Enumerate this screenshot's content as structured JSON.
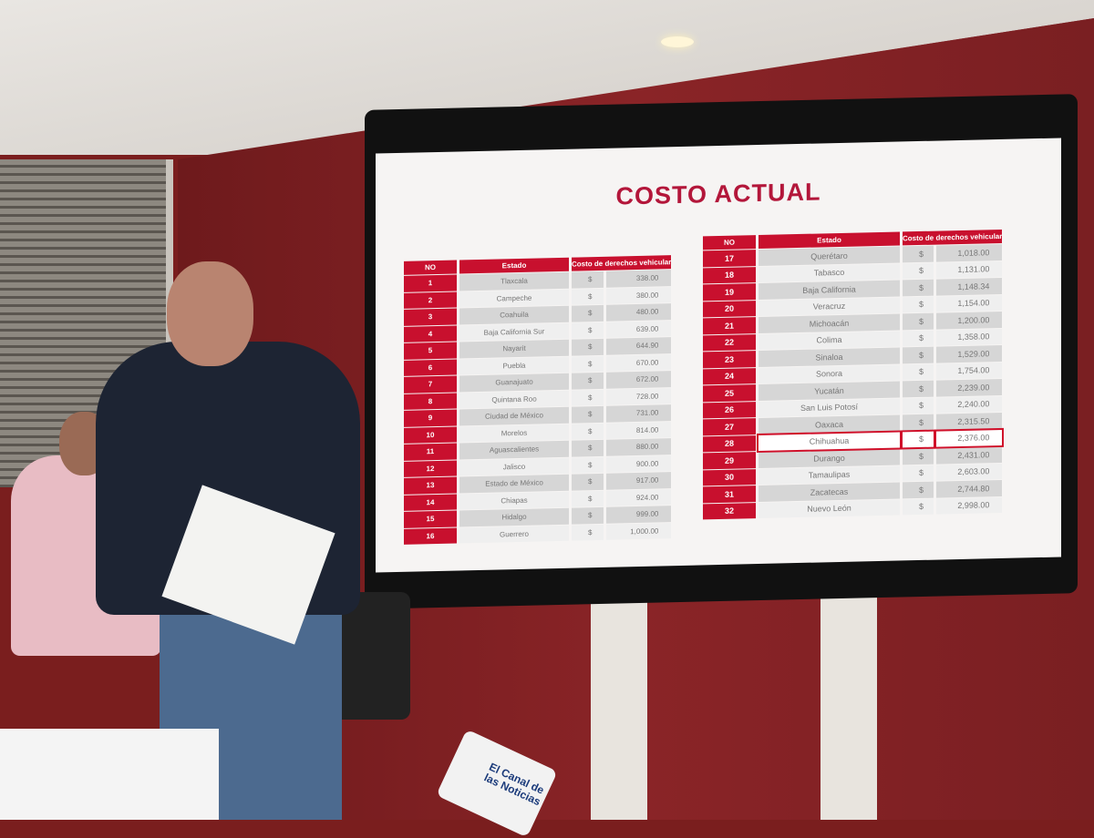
{
  "slide": {
    "title": "COSTO ACTUAL",
    "headers": [
      "NO",
      "Estado",
      "Costo de derechos vehicular"
    ],
    "currency": "$",
    "highlight_color": "#c8102e",
    "left_rows": [
      [
        "1",
        "Tlaxcala",
        "338.00"
      ],
      [
        "2",
        "Campeche",
        "380.00"
      ],
      [
        "3",
        "Coahuila",
        "480.00"
      ],
      [
        "4",
        "Baja California Sur",
        "639.00"
      ],
      [
        "5",
        "Nayarit",
        "644.90"
      ],
      [
        "6",
        "Puebla",
        "670.00"
      ],
      [
        "7",
        "Guanajuato",
        "672.00"
      ],
      [
        "8",
        "Quintana Roo",
        "728.00"
      ],
      [
        "9",
        "Ciudad de México",
        "731.00"
      ],
      [
        "10",
        "Morelos",
        "814.00"
      ],
      [
        "11",
        "Aguascalientes",
        "880.00"
      ],
      [
        "12",
        "Jalisco",
        "900.00"
      ],
      [
        "13",
        "Estado de México",
        "917.00"
      ],
      [
        "14",
        "Chiapas",
        "924.00"
      ],
      [
        "15",
        "Hidalgo",
        "999.00"
      ],
      [
        "16",
        "Guerrero",
        "1,000.00"
      ]
    ],
    "right_rows": [
      [
        "17",
        "Querétaro",
        "1,018.00"
      ],
      [
        "18",
        "Tabasco",
        "1,131.00"
      ],
      [
        "19",
        "Baja California",
        "1,148.34"
      ],
      [
        "20",
        "Veracruz",
        "1,154.00"
      ],
      [
        "21",
        "Michoacán",
        "1,200.00"
      ],
      [
        "22",
        "Colima",
        "1,358.00"
      ],
      [
        "23",
        "Sinaloa",
        "1,529.00"
      ],
      [
        "24",
        "Sonora",
        "1,754.00"
      ],
      [
        "25",
        "Yucatán",
        "2,239.00"
      ],
      [
        "26",
        "San Luis Potosí",
        "2,240.00"
      ],
      [
        "27",
        "Oaxaca",
        "2,315.50"
      ],
      [
        "28",
        "Chihuahua",
        "2,376.00"
      ],
      [
        "29",
        "Durango",
        "2,431.00"
      ],
      [
        "30",
        "Tamaulipas",
        "2,603.00"
      ],
      [
        "31",
        "Zacatecas",
        "2,744.80"
      ],
      [
        "32",
        "Nuevo León",
        "2,998.00"
      ]
    ],
    "highlighted_state": "Chihuahua"
  },
  "microphone": {
    "label": "El Canal de las Noticias"
  }
}
